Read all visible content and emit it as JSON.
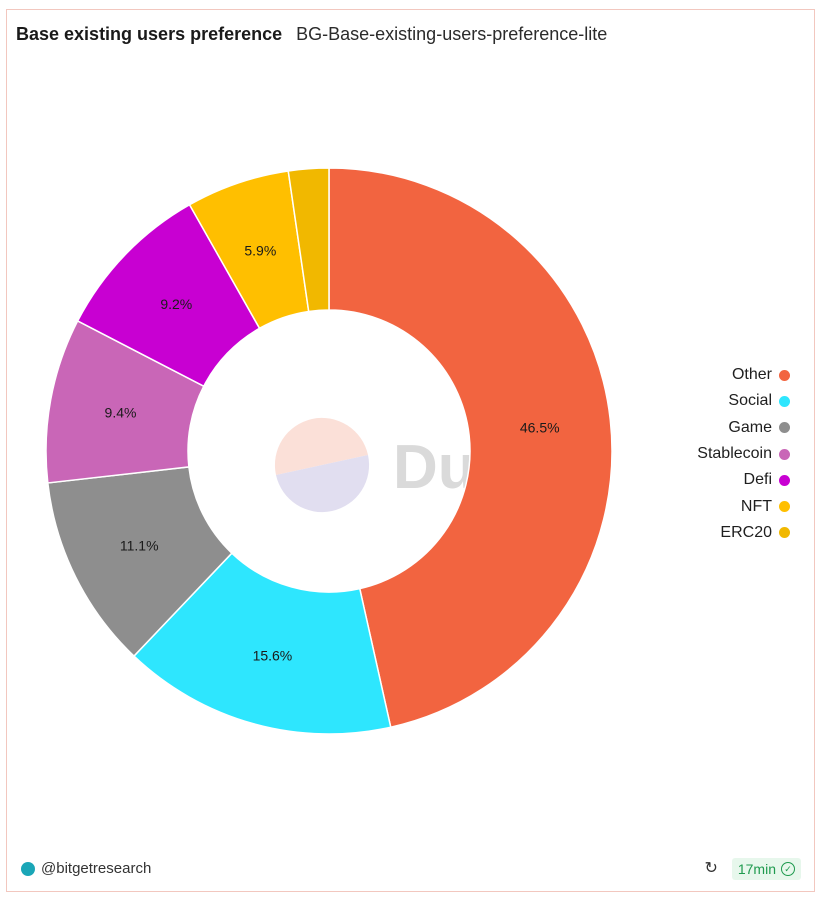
{
  "header": {
    "title": "Base existing users preference",
    "subtitle": "BG-Base-existing-users-preference-lite"
  },
  "watermark": {
    "text": "Dune"
  },
  "chart_data": {
    "type": "pie",
    "donut": true,
    "legend_position": "right",
    "categories": [
      "Other",
      "Social",
      "Game",
      "Stablecoin",
      "Defi",
      "NFT",
      "ERC20"
    ],
    "values": [
      46.5,
      15.6,
      11.1,
      9.4,
      9.2,
      5.9,
      2.3
    ],
    "labels": [
      "46.5%",
      "15.6%",
      "11.1%",
      "9.4%",
      "9.2%",
      "5.9%",
      ""
    ],
    "colors": [
      "#f26440",
      "#2ee6fe",
      "#8e8e8e",
      "#c966b7",
      "#c800d2",
      "#ffbf00",
      "#f1b800"
    ]
  },
  "footer": {
    "author": "@bitgetresearch",
    "refresh_icon": "refresh-icon",
    "freshness": "17min",
    "freshness_icon": "check-circle-icon"
  }
}
